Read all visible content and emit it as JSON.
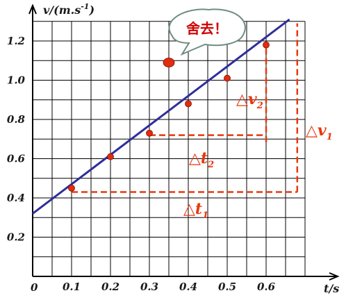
{
  "chart_data": {
    "type": "scatter",
    "ylabel": "v/(m.s",
    "ylabel_exp": "-1",
    "ylabel_close": ")",
    "xlabel": "t/s",
    "origin_label": "0",
    "x_ticks": [
      "0.1",
      "0.2",
      "0.3",
      "0.4",
      "0.5",
      "0.6"
    ],
    "y_ticks": [
      "0.2",
      "0.4",
      "0.6",
      "0.8",
      "1.0",
      "1.2"
    ],
    "xlim": [
      0,
      0.7
    ],
    "ylim": [
      0,
      1.3
    ],
    "grid": true,
    "points": [
      {
        "x": 0.1,
        "y": 0.45
      },
      {
        "x": 0.2,
        "y": 0.61
      },
      {
        "x": 0.3,
        "y": 0.73
      },
      {
        "x": 0.4,
        "y": 0.88
      },
      {
        "x": 0.5,
        "y": 1.01
      },
      {
        "x": 0.6,
        "y": 1.18
      }
    ],
    "outlier": {
      "x": 0.35,
      "y": 1.09
    },
    "fit_line": {
      "x1": 0,
      "y1": 0.32,
      "x2": 0.66,
      "y2": 1.31
    },
    "fit_color": "#2e2e9a",
    "point_color": "#e32b10",
    "dash_color": "#e8380d",
    "triangle_small": {
      "x1": 0.3,
      "x2": 0.6,
      "y1": 0.72,
      "y2": 1.18
    },
    "triangle_large": {
      "x1": 0.1,
      "x2": 0.68,
      "y1": 0.43,
      "y2": 1.29
    },
    "annotations": {
      "delta_v2": "△v",
      "delta_v2_sub": "2",
      "delta_t2": "△t",
      "delta_t2_sub": "2",
      "delta_v1": "△v",
      "delta_v1_sub": "1",
      "delta_t1": "△t",
      "delta_t1_sub": "1",
      "callout": "舍去！"
    }
  }
}
